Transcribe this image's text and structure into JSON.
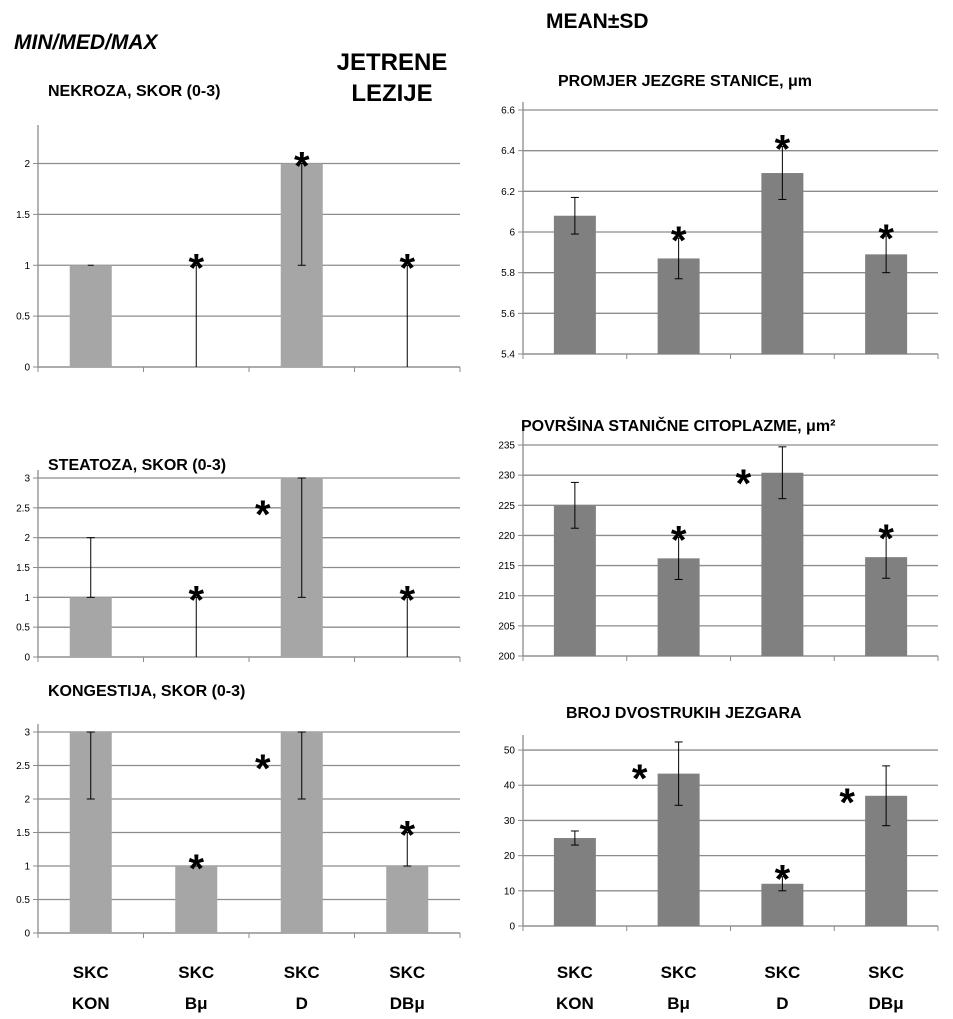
{
  "header": {
    "left_label": "MIN/MED/MAX",
    "center_title_line1": "JETRENE",
    "center_title_line2": "LEZIJE",
    "right_label": "MEAN±SD"
  },
  "group_labels": [
    {
      "line1": "SKC",
      "line2": "KON"
    },
    {
      "line1": "SKC",
      "line2": "Bμ"
    },
    {
      "line1": "SKC",
      "line2": "D"
    },
    {
      "line1": "SKC",
      "line2": "DBμ"
    }
  ],
  "significance_marker": "*",
  "colors": {
    "left_bar": "#a6a6a6",
    "right_bar": "#808080",
    "grid": "#8c8c8c",
    "axis": "#8c8c8c",
    "whisker": "#000000"
  },
  "chart_data": [
    {
      "type": "bar",
      "title": "NEKROZA, SKOR (0-3)",
      "categories": [
        "SKC KON",
        "SKC Bμ",
        "SKC D",
        "SKC DBμ"
      ],
      "values": [
        1,
        0,
        2,
        0
      ],
      "min": [
        1,
        0,
        1,
        0
      ],
      "max": [
        1,
        1,
        2,
        1
      ],
      "significant": [
        false,
        true,
        true,
        true
      ],
      "ylim": [
        0,
        2.3
      ],
      "yticks": [
        0,
        0.5,
        1,
        1.5,
        2
      ],
      "ytick_labels": [
        "0",
        "0.5",
        "1",
        "1.5",
        "2"
      ]
    },
    {
      "type": "bar",
      "title": "STEATOZA, SKOR (0-3)",
      "categories": [
        "SKC KON",
        "SKC Bμ",
        "SKC D",
        "SKC DBμ"
      ],
      "values": [
        1,
        0,
        3,
        0
      ],
      "min": [
        1,
        0,
        1,
        0
      ],
      "max": [
        2,
        1,
        3,
        1
      ],
      "significant": [
        false,
        true,
        true,
        true
      ],
      "ylim": [
        0,
        3
      ],
      "yticks": [
        0,
        0.5,
        1,
        1.5,
        2,
        2.5,
        3
      ],
      "ytick_labels": [
        "0",
        "0.5",
        "1",
        "1.5",
        "2",
        "2.5",
        "3"
      ]
    },
    {
      "type": "bar",
      "title": "KONGESTIJA, SKOR (0-3)",
      "categories": [
        "SKC KON",
        "SKC Bμ",
        "SKC D",
        "SKC DBμ"
      ],
      "values": [
        3,
        1,
        3,
        1
      ],
      "min": [
        2,
        1,
        2,
        1
      ],
      "max": [
        3,
        1,
        3,
        1.5
      ],
      "significant": [
        false,
        true,
        true,
        true
      ],
      "ylim": [
        0,
        3
      ],
      "yticks": [
        0,
        0.5,
        1,
        1.5,
        2,
        2.5,
        3
      ],
      "ytick_labels": [
        "0",
        "0.5",
        "1",
        "1.5",
        "2",
        "2.5",
        "3"
      ]
    },
    {
      "type": "bar",
      "title": "PROMJER JEZGRE STANICE, μm",
      "categories": [
        "SKC KON",
        "SKC Bμ",
        "SKC D",
        "SKC DBμ"
      ],
      "values": [
        6.08,
        5.87,
        6.29,
        5.89
      ],
      "error": [
        0.09,
        0.1,
        0.13,
        0.09
      ],
      "significant": [
        false,
        true,
        true,
        true
      ],
      "ylim": [
        5.4,
        6.6
      ],
      "yticks": [
        5.4,
        5.6,
        5.8,
        6,
        6.2,
        6.4,
        6.6
      ],
      "ytick_labels": [
        "5.4",
        "5.6",
        "5.8",
        "6",
        "6.2",
        "6.4",
        "6.6"
      ]
    },
    {
      "type": "bar",
      "title": "POVRŠINA STANIČNE CITOPLAZME, μm²",
      "categories": [
        "SKC KON",
        "SKC Bμ",
        "SKC D",
        "SKC DBμ"
      ],
      "values": [
        225,
        216.2,
        230.4,
        216.4
      ],
      "error": [
        3.8,
        3.5,
        4.3,
        3.5
      ],
      "significant": [
        false,
        true,
        true,
        true
      ],
      "ylim": [
        200,
        236
      ],
      "yticks": [
        200,
        205,
        210,
        215,
        220,
        225,
        230,
        235
      ],
      "ytick_labels": [
        "200",
        "205",
        "210",
        "215",
        "220",
        "225",
        "230",
        "235"
      ]
    },
    {
      "type": "bar",
      "title": "BROJ DVOSTRUKIH JEZGARA",
      "categories": [
        "SKC KON",
        "SKC Bμ",
        "SKC D",
        "SKC DBμ"
      ],
      "values": [
        25,
        43.3,
        12,
        37
      ],
      "error": [
        2,
        9,
        2,
        8.5
      ],
      "significant": [
        false,
        true,
        true,
        true
      ],
      "ylim": [
        0,
        52
      ],
      "yticks": [
        0,
        10,
        20,
        30,
        40,
        50
      ],
      "ytick_labels": [
        "0",
        "10",
        "20",
        "30",
        "40",
        "50"
      ]
    }
  ]
}
